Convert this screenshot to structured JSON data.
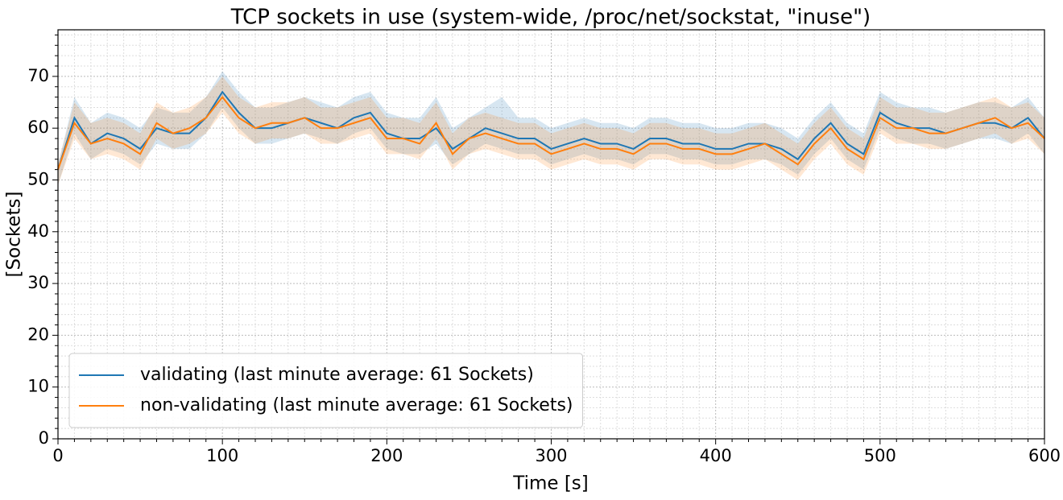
{
  "chart_data": {
    "type": "line",
    "title": "TCP sockets in use (system-wide, /proc/net/sockstat, \"inuse\")",
    "xlabel": "Time [s]",
    "ylabel": "[Sockets]",
    "x": [
      0,
      10,
      20,
      30,
      40,
      50,
      60,
      70,
      80,
      90,
      100,
      110,
      120,
      130,
      140,
      150,
      160,
      170,
      180,
      190,
      200,
      210,
      220,
      230,
      240,
      250,
      260,
      270,
      280,
      290,
      300,
      310,
      320,
      330,
      340,
      350,
      360,
      370,
      380,
      390,
      400,
      410,
      420,
      430,
      440,
      450,
      460,
      470,
      480,
      490,
      500,
      510,
      520,
      530,
      540,
      550,
      560,
      570,
      580,
      590,
      600
    ],
    "series": [
      {
        "name": "validating (last minute average: 61 Sockets)",
        "color": "#1f77b4",
        "values": [
          52,
          62,
          57,
          59,
          58,
          56,
          60,
          59,
          59,
          62,
          67,
          63,
          60,
          60,
          61,
          62,
          61,
          60,
          62,
          63,
          59,
          58,
          58,
          60,
          56,
          58,
          60,
          59,
          58,
          58,
          56,
          57,
          58,
          57,
          57,
          56,
          58,
          58,
          57,
          57,
          56,
          56,
          57,
          57,
          56,
          54,
          58,
          61,
          57,
          55,
          63,
          61,
          60,
          60,
          59,
          60,
          61,
          61,
          60,
          62,
          58
        ],
        "lower": [
          49,
          59,
          54,
          56,
          55,
          53,
          57,
          56,
          56,
          59,
          64,
          60,
          57,
          57,
          58,
          59,
          58,
          57,
          59,
          60,
          56,
          55,
          55,
          57,
          53,
          55,
          57,
          56,
          55,
          55,
          53,
          54,
          55,
          54,
          54,
          53,
          55,
          55,
          54,
          54,
          53,
          53,
          54,
          54,
          53,
          51,
          55,
          58,
          54,
          52,
          60,
          58,
          57,
          57,
          56,
          57,
          58,
          58,
          57,
          59,
          55
        ],
        "upper": [
          53,
          66,
          61,
          63,
          62,
          60,
          64,
          63,
          63,
          66,
          71,
          67,
          64,
          64,
          65,
          66,
          65,
          64,
          66,
          67,
          63,
          62,
          62,
          66,
          60,
          62,
          64,
          66,
          62,
          62,
          60,
          61,
          62,
          61,
          61,
          60,
          62,
          62,
          61,
          61,
          60,
          60,
          61,
          61,
          60,
          58,
          62,
          65,
          61,
          59,
          67,
          65,
          64,
          64,
          63,
          64,
          65,
          65,
          64,
          66,
          62
        ]
      },
      {
        "name": "non-validating (last minute average: 61 Sockets)",
        "color": "#ff7f0e",
        "values": [
          52,
          61,
          57,
          58,
          57,
          55,
          61,
          59,
          60,
          62,
          66,
          62,
          60,
          61,
          61,
          62,
          60,
          60,
          61,
          62,
          58,
          58,
          57,
          61,
          55,
          58,
          59,
          58,
          57,
          57,
          55,
          56,
          57,
          56,
          56,
          55,
          57,
          57,
          56,
          56,
          55,
          55,
          56,
          57,
          55,
          53,
          57,
          60,
          56,
          54,
          62,
          60,
          60,
          59,
          59,
          60,
          61,
          62,
          60,
          61,
          58
        ],
        "lower": [
          49,
          58,
          54,
          55,
          54,
          52,
          58,
          56,
          57,
          59,
          63,
          59,
          57,
          58,
          58,
          59,
          57,
          57,
          58,
          59,
          55,
          55,
          54,
          58,
          52,
          55,
          56,
          55,
          54,
          54,
          52,
          53,
          54,
          53,
          53,
          52,
          54,
          54,
          53,
          53,
          52,
          52,
          53,
          54,
          52,
          50,
          54,
          57,
          53,
          51,
          59,
          57,
          57,
          56,
          56,
          57,
          58,
          59,
          57,
          58,
          55
        ],
        "upper": [
          53,
          65,
          61,
          62,
          61,
          59,
          65,
          63,
          64,
          66,
          70,
          66,
          64,
          65,
          65,
          66,
          64,
          64,
          65,
          66,
          62,
          62,
          61,
          65,
          59,
          62,
          63,
          62,
          61,
          61,
          59,
          60,
          61,
          60,
          60,
          59,
          61,
          61,
          60,
          60,
          59,
          59,
          60,
          61,
          59,
          57,
          61,
          64,
          60,
          58,
          66,
          64,
          64,
          63,
          63,
          64,
          65,
          66,
          64,
          65,
          62
        ]
      }
    ],
    "xlim": [
      0,
      600
    ],
    "xticks": [
      0,
      100,
      200,
      300,
      400,
      500,
      600
    ],
    "ylim": [
      0,
      79
    ],
    "yticks": [
      0,
      10,
      20,
      30,
      40,
      50,
      60,
      70
    ],
    "grid": true,
    "minor_divisions_x": 10,
    "minor_divisions_y": 5,
    "legend": "lower left"
  }
}
